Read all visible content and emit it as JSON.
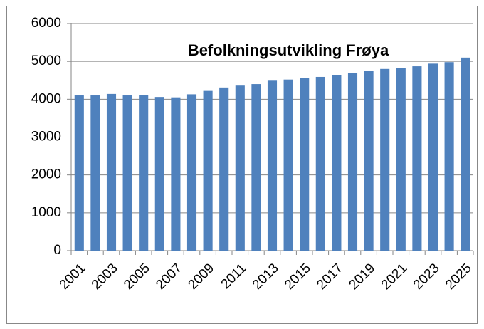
{
  "chart_data": {
    "type": "bar",
    "title": "Befolkningsutvikling Frøya",
    "categories": [
      "2001",
      null,
      "2003",
      null,
      "2005",
      null,
      "2007",
      null,
      "2009",
      null,
      "2011",
      null,
      "2013",
      null,
      "2015",
      null,
      "2017",
      null,
      "2019",
      null,
      "2021",
      null,
      "2023",
      null,
      "2025"
    ],
    "values": [
      4100,
      4100,
      4140,
      4100,
      4110,
      4060,
      4050,
      4130,
      4220,
      4310,
      4360,
      4400,
      4490,
      4520,
      4560,
      4590,
      4630,
      4690,
      4740,
      4800,
      4830,
      4870,
      4940,
      4980,
      5100
    ],
    "color": "#4f81bd",
    "ylim": [
      0,
      6000
    ],
    "yticks": [
      0,
      1000,
      2000,
      3000,
      4000,
      5000,
      6000
    ],
    "grid": true
  }
}
